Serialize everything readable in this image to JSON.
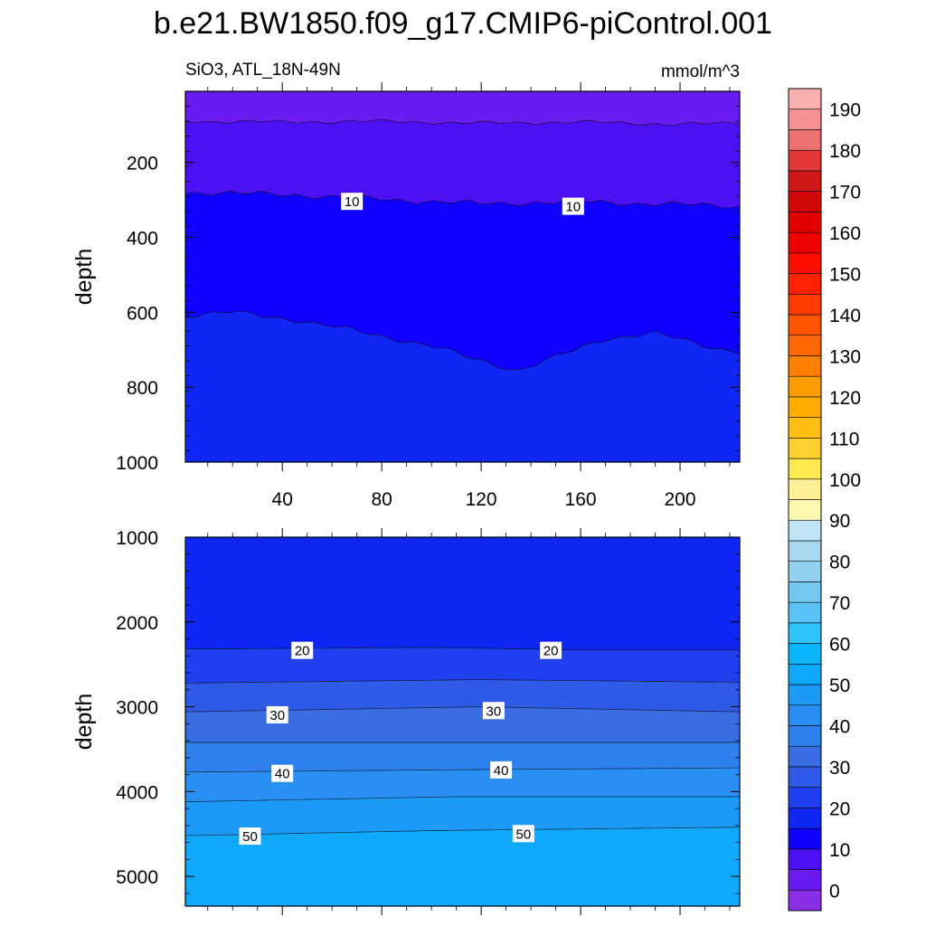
{
  "title": "b.e21.BW1850.f09_g17.CMIP6-piControl.001",
  "subtitle_left": "SiO3, ATL_18N-49N",
  "subtitle_right": "mmol/m^3",
  "chart_data": [
    {
      "type": "heatmap",
      "panel": "upper",
      "ylabel": "depth",
      "xlim": [
        1,
        224
      ],
      "ylim": [
        1000,
        10
      ],
      "y_inverted": true,
      "x_ticks": [
        40,
        80,
        120,
        160,
        200
      ],
      "y_ticks": [
        200,
        400,
        600,
        800,
        1000
      ],
      "contour_bounds": [
        {
          "level": 5,
          "depth": [
            [
              1,
              90
            ],
            [
              40,
              92
            ],
            [
              80,
              90
            ],
            [
              120,
              95
            ],
            [
              160,
              92
            ],
            [
              200,
              98
            ],
            [
              224,
              95
            ]
          ]
        },
        {
          "level": 10,
          "depth": [
            [
              1,
              280
            ],
            [
              40,
              285
            ],
            [
              80,
              298
            ],
            [
              120,
              310
            ],
            [
              160,
              305
            ],
            [
              200,
              312
            ],
            [
              224,
              318
            ]
          ]
        },
        {
          "level": 15,
          "depth": [
            [
              1,
              610
            ],
            [
              20,
              600
            ],
            [
              40,
              615
            ],
            [
              70,
              650
            ],
            [
              100,
              690
            ],
            [
              120,
              730
            ],
            [
              135,
              755
            ],
            [
              150,
              720
            ],
            [
              170,
              670
            ],
            [
              190,
              655
            ],
            [
              210,
              690
            ],
            [
              224,
              705
            ]
          ]
        }
      ],
      "contour_labels": [
        {
          "text": "10",
          "x": 68,
          "y": 305
        },
        {
          "text": "10",
          "x": 157,
          "y": 318
        }
      ],
      "band_values": [
        2.5,
        7.5,
        12.5,
        17.5
      ]
    },
    {
      "type": "heatmap",
      "panel": "lower",
      "ylabel": "depth",
      "xlim": [
        1,
        224
      ],
      "ylim": [
        5350,
        1000
      ],
      "y_inverted": true,
      "y_ticks": [
        1000,
        2000,
        3000,
        4000,
        5000
      ],
      "contour_bounds": [
        {
          "level": 20,
          "depth": [
            [
              1,
              2320
            ],
            [
              100,
              2300
            ],
            [
              160,
              2330
            ],
            [
              224,
              2330
            ]
          ]
        },
        {
          "level": 25,
          "depth": [
            [
              1,
              2720
            ],
            [
              120,
              2680
            ],
            [
              224,
              2710
            ]
          ]
        },
        {
          "level": 30,
          "depth": [
            [
              1,
              3060
            ],
            [
              120,
              3000
            ],
            [
              224,
              3060
            ]
          ]
        },
        {
          "level": 35,
          "depth": [
            [
              1,
              3420
            ],
            [
              120,
              3420
            ],
            [
              224,
              3420
            ]
          ]
        },
        {
          "level": 40,
          "depth": [
            [
              1,
              3770
            ],
            [
              120,
              3740
            ],
            [
              224,
              3720
            ]
          ]
        },
        {
          "level": 45,
          "depth": [
            [
              1,
              4120
            ],
            [
              110,
              4060
            ],
            [
              224,
              4060
            ]
          ]
        },
        {
          "level": 50,
          "depth": [
            [
              1,
              4520
            ],
            [
              100,
              4460
            ],
            [
              224,
              4420
            ]
          ]
        }
      ],
      "contour_labels": [
        {
          "text": "20",
          "x": 48,
          "y": 2340
        },
        {
          "text": "20",
          "x": 148,
          "y": 2340
        },
        {
          "text": "30",
          "x": 38,
          "y": 3100
        },
        {
          "text": "30",
          "x": 125,
          "y": 3050
        },
        {
          "text": "40",
          "x": 40,
          "y": 3790
        },
        {
          "text": "40",
          "x": 128,
          "y": 3750
        },
        {
          "text": "50",
          "x": 27,
          "y": 4530
        },
        {
          "text": "50",
          "x": 137,
          "y": 4500
        }
      ],
      "band_values": [
        17.5,
        22.5,
        27.5,
        32.5,
        37.5,
        42.5,
        47.5,
        52.5
      ]
    }
  ],
  "colorbar": {
    "label_values": [
      0,
      10,
      20,
      30,
      40,
      50,
      60,
      70,
      80,
      90,
      100,
      110,
      120,
      130,
      140,
      150,
      160,
      170,
      180,
      190
    ],
    "bounds": [
      -5,
      195
    ],
    "colors": [
      "#8b2fe6",
      "#6a1cf0",
      "#4c10f5",
      "#1000ff",
      "#1026f5",
      "#2040f0",
      "#2f5ae8",
      "#3a6ce2",
      "#2e80ee",
      "#2890f5",
      "#1c9af8",
      "#10a8fa",
      "#0ab4ff",
      "#2ec4fb",
      "#58c2f2",
      "#76c8ef",
      "#94d0ef",
      "#a8d8f0",
      "#c0e4f4",
      "#fdfab0",
      "#fff098",
      "#ffe850",
      "#ffd030",
      "#ffbe14",
      "#ffab00",
      "#ff9c00",
      "#ff8000",
      "#ff6800",
      "#ff5400",
      "#ff3c00",
      "#ff2200",
      "#ff0e00",
      "#f00000",
      "#e00000",
      "#d00808",
      "#d01818",
      "#e03838",
      "#ec7070",
      "#f49090",
      "#f9b0b0"
    ]
  }
}
